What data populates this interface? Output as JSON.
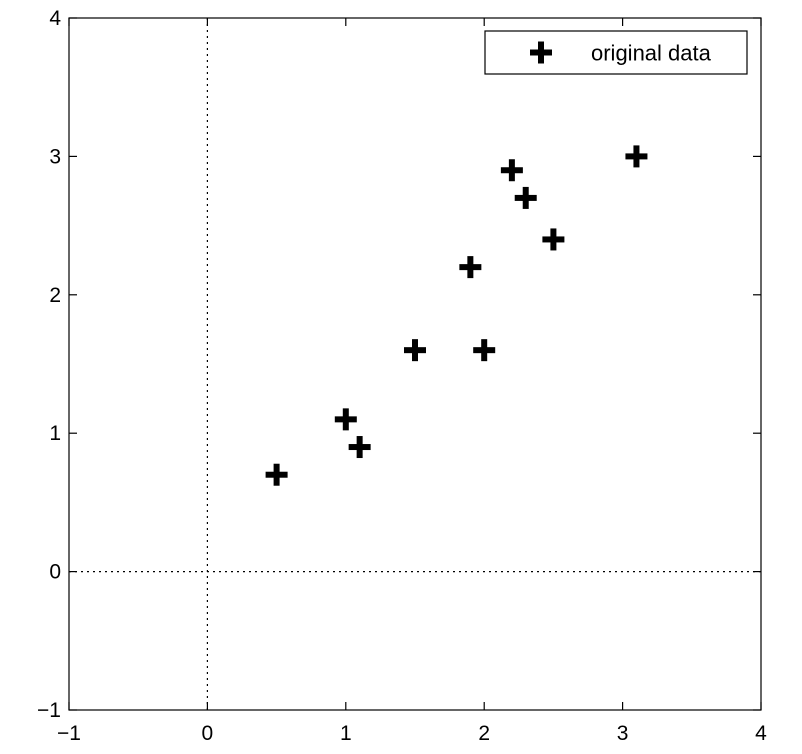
{
  "chart_data": {
    "type": "scatter",
    "title": "",
    "xlabel": "",
    "ylabel": "",
    "xlim": [
      -1,
      4
    ],
    "ylim": [
      -1,
      4
    ],
    "xticks": [
      -1,
      0,
      1,
      2,
      3,
      4
    ],
    "yticks": [
      -1,
      0,
      1,
      2,
      3,
      4
    ],
    "xtick_labels": [
      "−1",
      "0",
      "1",
      "2",
      "3",
      "4"
    ],
    "ytick_labels": [
      "−1",
      "0",
      "1",
      "2",
      "3",
      "4"
    ],
    "grid": false,
    "reference_lines": {
      "x0_dotted": true,
      "y0_dotted": true
    },
    "legend": {
      "position": "top-right",
      "entries": [
        "original data"
      ]
    },
    "marker": "plus",
    "marker_color": "#000000",
    "series": [
      {
        "name": "original data",
        "x": [
          2.5,
          0.5,
          2.2,
          1.9,
          3.1,
          2.3,
          2.0,
          1.0,
          1.5,
          1.1
        ],
        "y": [
          2.4,
          0.7,
          2.9,
          2.2,
          3.0,
          2.7,
          1.6,
          1.1,
          1.6,
          0.9
        ]
      }
    ]
  }
}
